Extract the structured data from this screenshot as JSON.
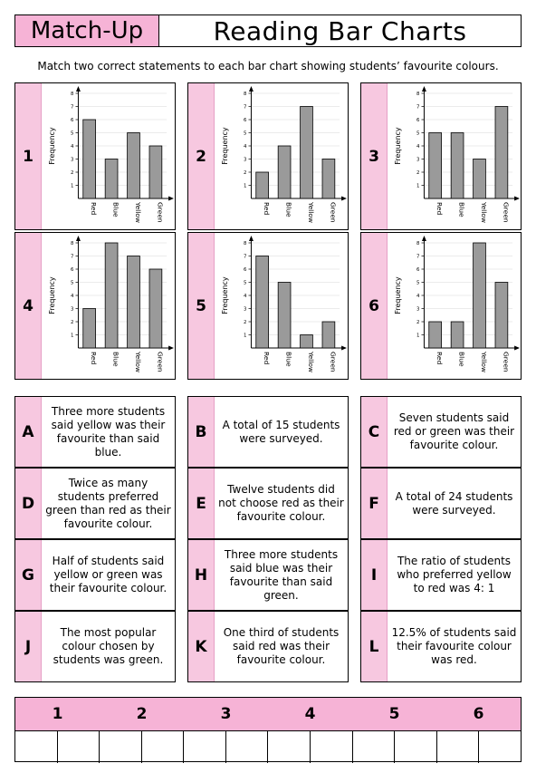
{
  "header": {
    "badge": "Match-Up",
    "title": "Reading Bar Charts"
  },
  "instructions": "Match two correct statements to each bar chart showing students’ favourite colours.",
  "y_axis_label": "Frequency",
  "bar_color": "#9a9a9a",
  "chart_data": [
    {
      "type": "bar",
      "label": "1",
      "categories": [
        "Red",
        "Blue",
        "Yellow",
        "Green"
      ],
      "values": [
        6,
        3,
        5,
        4
      ],
      "ylabel": "Frequency",
      "ylim": [
        0,
        8
      ],
      "yticks": [
        "1",
        "2",
        "3",
        "4",
        "5",
        "6",
        "7",
        "8"
      ]
    },
    {
      "type": "bar",
      "label": "2",
      "categories": [
        "Red",
        "Blue",
        "Yellow",
        "Green"
      ],
      "values": [
        2,
        4,
        7,
        3
      ],
      "ylabel": "Frequency",
      "ylim": [
        0,
        8
      ],
      "yticks": [
        "1",
        "2",
        "3",
        "4",
        "5",
        "6",
        "7",
        "8"
      ]
    },
    {
      "type": "bar",
      "label": "3",
      "categories": [
        "Red",
        "Blue",
        "Yellow",
        "Green"
      ],
      "values": [
        5,
        5,
        3,
        7
      ],
      "ylabel": "Frequency",
      "ylim": [
        0,
        8
      ],
      "yticks": [
        "1",
        "2",
        "3",
        "4",
        "5",
        "6",
        "7",
        "8"
      ]
    },
    {
      "type": "bar",
      "label": "4",
      "categories": [
        "Red",
        "Blue",
        "Yellow",
        "Green"
      ],
      "values": [
        3,
        8,
        7,
        6
      ],
      "ylabel": "Frequency",
      "ylim": [
        0,
        8
      ],
      "yticks": [
        "1",
        "2",
        "3",
        "4",
        "5",
        "6",
        "7",
        "8"
      ]
    },
    {
      "type": "bar",
      "label": "5",
      "categories": [
        "Red",
        "Blue",
        "Yellow",
        "Green"
      ],
      "values": [
        7,
        5,
        1,
        2
      ],
      "ylabel": "Frequency",
      "ylim": [
        0,
        8
      ],
      "yticks": [
        "1",
        "2",
        "3",
        "4",
        "5",
        "6",
        "7",
        "8"
      ]
    },
    {
      "type": "bar",
      "label": "6",
      "categories": [
        "Red",
        "Blue",
        "Yellow",
        "Green"
      ],
      "values": [
        2,
        2,
        8,
        5
      ],
      "ylabel": "Frequency",
      "ylim": [
        0,
        8
      ],
      "yticks": [
        "1",
        "2",
        "3",
        "4",
        "5",
        "6",
        "7",
        "8"
      ]
    }
  ],
  "statements": [
    {
      "letter": "A",
      "text": "Three more students said yellow was their favourite than said blue."
    },
    {
      "letter": "B",
      "text": "A total of 15 students were surveyed."
    },
    {
      "letter": "C",
      "text": "Seven students said red or green was their favourite colour."
    },
    {
      "letter": "D",
      "text": "Twice as many students preferred green than red as their favourite colour."
    },
    {
      "letter": "E",
      "text": "Twelve students did not choose red as their favourite colour."
    },
    {
      "letter": "F",
      "text": "A total of 24 students were surveyed."
    },
    {
      "letter": "G",
      "text": "Half of students said yellow or green was their favourite colour."
    },
    {
      "letter": "H",
      "text": "Three more students said blue was their favourite than said green."
    },
    {
      "letter": "I",
      "text": "The ratio of students who preferred yellow to red was 4: 1"
    },
    {
      "letter": "J",
      "text": "The most popular colour chosen by students was green."
    },
    {
      "letter": "K",
      "text": "One third of students said red was their favourite colour."
    },
    {
      "letter": "L",
      "text": "12.5% of students said their favourite colour was red."
    }
  ],
  "answer_grid": {
    "headers": [
      "1",
      "2",
      "3",
      "4",
      "5",
      "6"
    ]
  }
}
